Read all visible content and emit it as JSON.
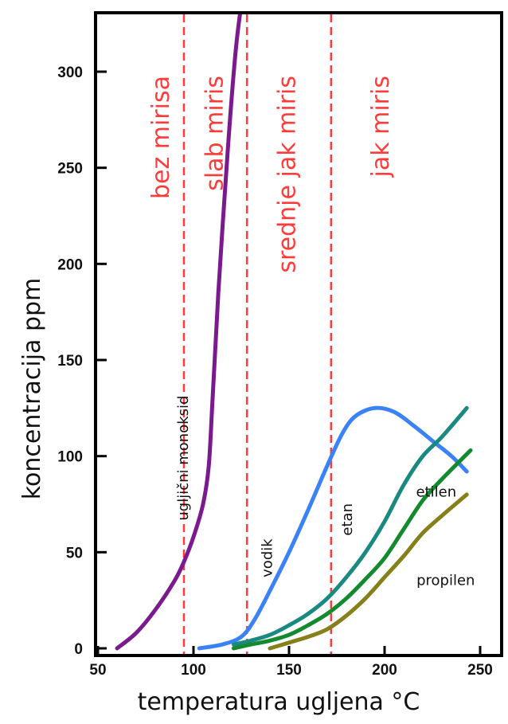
{
  "chart_data": {
    "type": "line",
    "xlabel": "temperatura ugljena °C",
    "ylabel": "koncentracija ppm",
    "xlim": [
      50,
      255
    ],
    "ylim": [
      0,
      330
    ],
    "xticks": [
      50,
      100,
      150,
      200,
      250
    ],
    "yticks": [
      0,
      50,
      100,
      150,
      200,
      250,
      300
    ],
    "grid": false,
    "legend": "none",
    "zone_boundaries": [
      95,
      128,
      172
    ],
    "zones": [
      {
        "label": "bez mirisa",
        "x": 83
      },
      {
        "label": "slab miris",
        "x": 111
      },
      {
        "label": "srednje jak miris",
        "x": 149
      },
      {
        "label": "jak miris",
        "x": 198
      }
    ],
    "series": [
      {
        "name": "ugljični monoksid",
        "color": "#7b1a8e",
        "label_pos": [
          97,
          99
        ],
        "x": [
          60,
          70,
          80,
          90,
          95,
          100,
          105,
          108,
          110,
          113,
          118,
          122,
          125
        ],
        "y": [
          0,
          8,
          20,
          35,
          45,
          58,
          75,
          95,
          130,
          185,
          260,
          310,
          335
        ]
      },
      {
        "name": "vodik",
        "color": "#3b82f6",
        "label_pos": [
          141,
          47
        ],
        "x": [
          103,
          115,
          125,
          132,
          140,
          150,
          160,
          170,
          178,
          185,
          195,
          205,
          215,
          225,
          235,
          243
        ],
        "y": [
          0,
          2,
          6,
          15,
          30,
          50,
          72,
          95,
          112,
          121,
          125,
          123,
          116,
          108,
          100,
          92
        ]
      },
      {
        "name": "etan",
        "color": "#1a8a80",
        "label_pos": [
          183,
          67
        ],
        "x": [
          121,
          130,
          140,
          150,
          160,
          170,
          180,
          190,
          200,
          210,
          220,
          230,
          243
        ],
        "y": [
          2,
          4,
          7,
          12,
          18,
          26,
          37,
          50,
          66,
          85,
          100,
          110,
          125
        ]
      },
      {
        "name": "etilen",
        "color": "#138a2e",
        "label_pos": [
          227,
          79
        ],
        "x": [
          121,
          130,
          140,
          150,
          160,
          170,
          180,
          190,
          200,
          210,
          220,
          230,
          245
        ],
        "y": [
          0,
          2,
          4,
          7,
          12,
          18,
          26,
          36,
          47,
          62,
          77,
          88,
          103
        ]
      },
      {
        "name": "propilen",
        "color": "#86801a",
        "label_pos": [
          232,
          33
        ],
        "x": [
          140,
          150,
          160,
          170,
          180,
          190,
          200,
          210,
          220,
          230,
          243
        ],
        "y": [
          0,
          3,
          6,
          10,
          17,
          26,
          37,
          48,
          60,
          69,
          80
        ]
      }
    ]
  }
}
